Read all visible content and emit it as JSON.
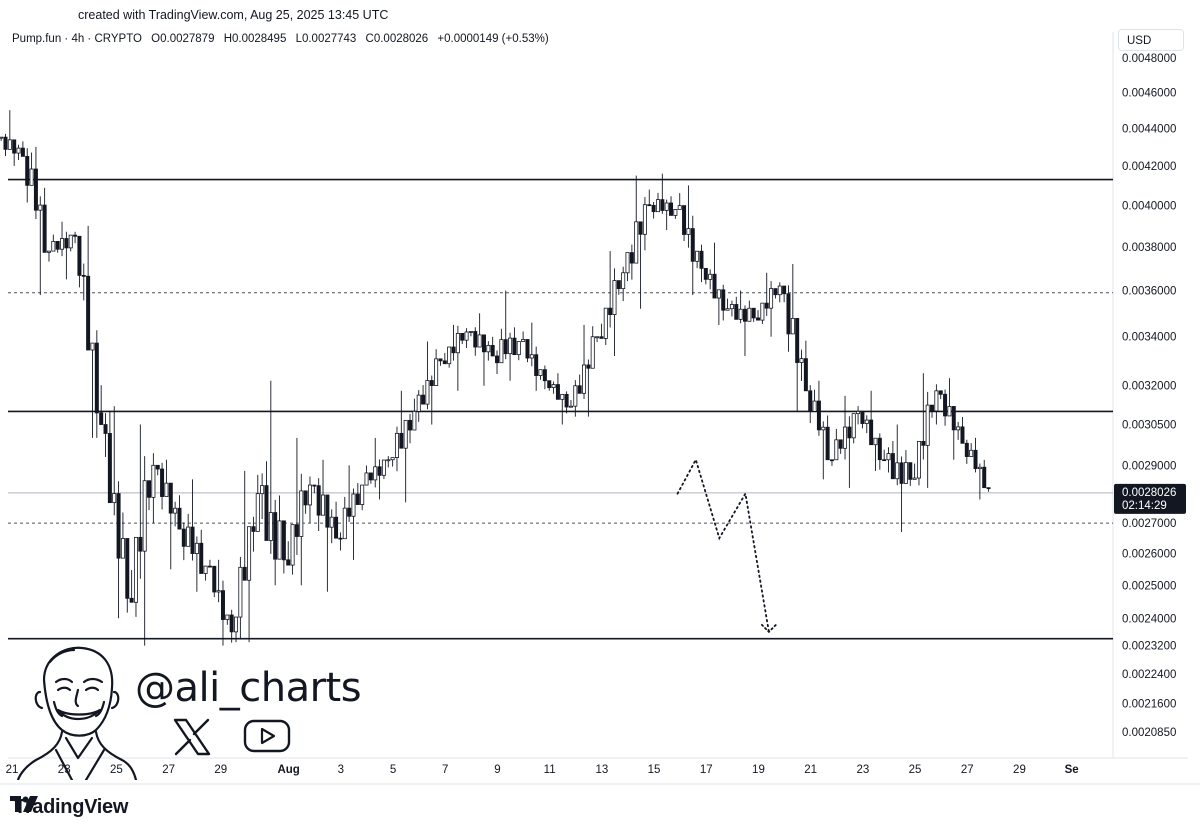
{
  "header": {
    "created_text": "created with TradingView.com, Aug 25, 2025 13:45 UTC"
  },
  "legend": {
    "symbol": "Pump.fun · 4h · CRYPTO",
    "open": "O0.0027879",
    "high": "H0.0028495",
    "low": "L0.0027743",
    "close": "C0.0028026",
    "change": "+0.0000149 (+0.53%)"
  },
  "currency_label": "USD",
  "price_badge": {
    "price": "0.0028026",
    "countdown": "02:14:29"
  },
  "watermark": {
    "handle": "@ali_charts",
    "icons": [
      "x-logo-icon",
      "youtube-icon"
    ]
  },
  "brand": {
    "name": "TradingView"
  },
  "chart_data": {
    "type": "candlestick",
    "y_scale": "log",
    "y_ticks": [
      "0.0048000",
      "0.0046000",
      "0.0044000",
      "0.0042000",
      "0.0040000",
      "0.0038000",
      "0.0036000",
      "0.0034000",
      "0.0032000",
      "0.0030500",
      "0.0029000",
      "0.0027000",
      "0.0026000",
      "0.0025000",
      "0.0024000",
      "0.0023200",
      "0.0022400",
      "0.0021600",
      "0.0020850"
    ],
    "x_ticks": [
      "21",
      "23",
      "25",
      "27",
      "29",
      "Aug",
      "3",
      "5",
      "7",
      "9",
      "11",
      "13",
      "15",
      "17",
      "19",
      "21",
      "23",
      "25",
      "27",
      "29",
      "Se"
    ],
    "horizontal_levels": [
      {
        "price": 0.00413,
        "style": "solid"
      },
      {
        "price": 0.00359,
        "style": "dashed"
      },
      {
        "price": 0.0031,
        "style": "solid"
      },
      {
        "price": 0.0027,
        "style": "dashed"
      },
      {
        "price": 0.00234,
        "style": "solid"
      }
    ],
    "current_price": 0.0028026,
    "projection": [
      {
        "day": 25.5,
        "price": 0.0028
      },
      {
        "day": 26.2,
        "price": 0.00292
      },
      {
        "day": 27.1,
        "price": 0.00265
      },
      {
        "day": 28.1,
        "price": 0.0028
      },
      {
        "day": 29.0,
        "price": 0.00236
      }
    ],
    "candles_daily": [
      {
        "o": 0.00435,
        "h": 0.0045,
        "l": 0.0042,
        "c": 0.00425
      },
      {
        "o": 0.00425,
        "h": 0.0043,
        "l": 0.00358,
        "c": 0.00378
      },
      {
        "o": 0.00378,
        "h": 0.00392,
        "l": 0.00365,
        "c": 0.00385
      },
      {
        "o": 0.00385,
        "h": 0.0039,
        "l": 0.003,
        "c": 0.00305
      },
      {
        "o": 0.00305,
        "h": 0.00312,
        "l": 0.0024,
        "c": 0.00246
      },
      {
        "o": 0.00246,
        "h": 0.00305,
        "l": 0.00232,
        "c": 0.0029
      },
      {
        "o": 0.0029,
        "h": 0.00292,
        "l": 0.00255,
        "c": 0.00268
      },
      {
        "o": 0.00268,
        "h": 0.00285,
        "l": 0.00248,
        "c": 0.00256
      },
      {
        "o": 0.00256,
        "h": 0.00258,
        "l": 0.00232,
        "c": 0.00236
      },
      {
        "o": 0.00236,
        "h": 0.00288,
        "l": 0.00233,
        "c": 0.0028
      },
      {
        "o": 0.0028,
        "h": 0.00322,
        "l": 0.0025,
        "c": 0.00258
      },
      {
        "o": 0.00258,
        "h": 0.003,
        "l": 0.0025,
        "c": 0.00283
      },
      {
        "o": 0.00283,
        "h": 0.00292,
        "l": 0.00248,
        "c": 0.00265
      },
      {
        "o": 0.00265,
        "h": 0.0029,
        "l": 0.00258,
        "c": 0.00283
      },
      {
        "o": 0.00283,
        "h": 0.003,
        "l": 0.00278,
        "c": 0.00292
      },
      {
        "o": 0.00292,
        "h": 0.00318,
        "l": 0.00277,
        "c": 0.0031
      },
      {
        "o": 0.0031,
        "h": 0.00338,
        "l": 0.00305,
        "c": 0.0033
      },
      {
        "o": 0.0033,
        "h": 0.00345,
        "l": 0.00318,
        "c": 0.00342
      },
      {
        "o": 0.00342,
        "h": 0.0035,
        "l": 0.0032,
        "c": 0.00332
      },
      {
        "o": 0.00332,
        "h": 0.0036,
        "l": 0.00322,
        "c": 0.00338
      },
      {
        "o": 0.00338,
        "h": 0.00346,
        "l": 0.00318,
        "c": 0.00322
      },
      {
        "o": 0.00322,
        "h": 0.00325,
        "l": 0.00305,
        "c": 0.00312
      },
      {
        "o": 0.00312,
        "h": 0.00345,
        "l": 0.00308,
        "c": 0.0034
      },
      {
        "o": 0.0034,
        "h": 0.00378,
        "l": 0.00332,
        "c": 0.00368
      },
      {
        "o": 0.00368,
        "h": 0.00415,
        "l": 0.00352,
        "c": 0.004
      },
      {
        "o": 0.004,
        "h": 0.00416,
        "l": 0.00388,
        "c": 0.00398
      },
      {
        "o": 0.00398,
        "h": 0.0041,
        "l": 0.00358,
        "c": 0.0037
      },
      {
        "o": 0.0037,
        "h": 0.00382,
        "l": 0.00345,
        "c": 0.00352
      },
      {
        "o": 0.00352,
        "h": 0.0036,
        "l": 0.00332,
        "c": 0.00348
      },
      {
        "o": 0.00348,
        "h": 0.00368,
        "l": 0.0034,
        "c": 0.00362
      },
      {
        "o": 0.00362,
        "h": 0.00372,
        "l": 0.0031,
        "c": 0.00318
      },
      {
        "o": 0.00318,
        "h": 0.00322,
        "l": 0.00285,
        "c": 0.00292
      },
      {
        "o": 0.00292,
        "h": 0.00316,
        "l": 0.00282,
        "c": 0.0031
      },
      {
        "o": 0.0031,
        "h": 0.00318,
        "l": 0.00288,
        "c": 0.00292
      },
      {
        "o": 0.00292,
        "h": 0.00305,
        "l": 0.00267,
        "c": 0.00285
      },
      {
        "o": 0.00285,
        "h": 0.00325,
        "l": 0.00282,
        "c": 0.00318
      },
      {
        "o": 0.00318,
        "h": 0.00323,
        "l": 0.00292,
        "c": 0.00298
      },
      {
        "o": 0.00298,
        "h": 0.003,
        "l": 0.00278,
        "c": 0.00282
      }
    ]
  }
}
